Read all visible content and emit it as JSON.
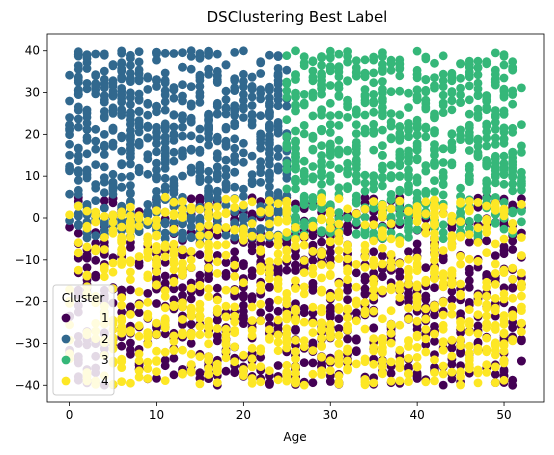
{
  "chart_data": {
    "type": "scatter",
    "title": "DSClustering Best Label",
    "xlabel": "Age",
    "ylabel": "",
    "xlim": [
      -2.6,
      54.6
    ],
    "ylim": [
      -44,
      44
    ],
    "xticks": [
      0,
      10,
      20,
      30,
      40,
      50
    ],
    "yticks": [
      -40,
      -30,
      -20,
      -10,
      0,
      10,
      20,
      30,
      40
    ],
    "grid": false,
    "legend": {
      "title": "Cluster",
      "placement": "lower-left",
      "entries": [
        "1",
        "2",
        "3",
        "4"
      ]
    },
    "series": [
      {
        "name": "1",
        "color": "#440154",
        "region": {
          "x": [
            0,
            52
          ],
          "y": [
            -40,
            5
          ]
        },
        "count": 900,
        "seed": 11
      },
      {
        "name": "2",
        "color": "#31688e",
        "region": {
          "x": [
            0,
            25
          ],
          "y": [
            -5,
            40
          ]
        },
        "count": 700,
        "seed": 22
      },
      {
        "name": "3",
        "color": "#35b779",
        "region": {
          "x": [
            25,
            52
          ],
          "y": [
            -5,
            40
          ]
        },
        "count": 700,
        "seed": 33
      },
      {
        "name": "4",
        "color": "#fde725",
        "region": {
          "x": [
            0,
            52
          ],
          "y": [
            -40,
            5
          ]
        },
        "count": 900,
        "seed": 44
      }
    ]
  }
}
